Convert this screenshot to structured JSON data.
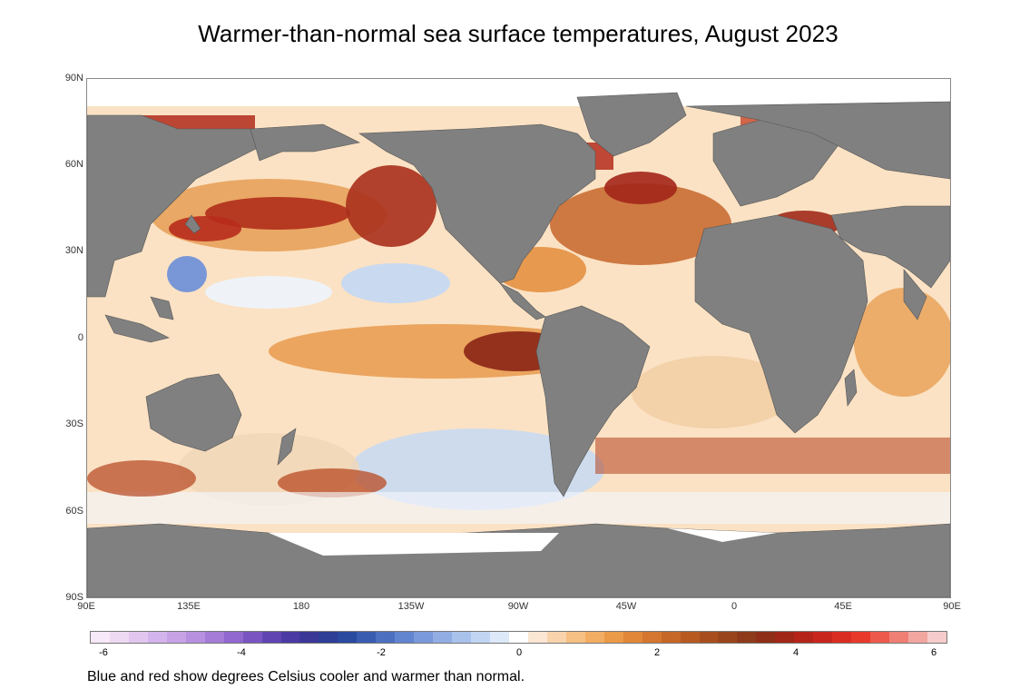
{
  "title": "Warmer-than-normal sea surface temperatures, August 2023",
  "caption": "Blue and red show degrees Celsius cooler and warmer than normal.",
  "map": {
    "projection": "equirectangular",
    "lon_range_labels": [
      "90E",
      "90E"
    ],
    "lat_labels": [
      "90N",
      "60N",
      "30N",
      "0",
      "30S",
      "60S",
      "90S"
    ],
    "lon_labels": [
      "90E",
      "135E",
      "180",
      "135W",
      "90W",
      "45W",
      "0",
      "45E",
      "90E"
    ],
    "colors": {
      "land": "#808080",
      "ice": "#ffffff",
      "warm": "#c23b1f",
      "cool": "#5b7fd6",
      "neutral": "#ffffff"
    }
  },
  "colorbar": {
    "ticks": [
      "-6",
      "-4",
      "-2",
      "0",
      "2",
      "4",
      "6"
    ],
    "range": [
      -6,
      6
    ],
    "colors": [
      "#f7e9f7",
      "#eed9f2",
      "#e1c6ef",
      "#d4b4ec",
      "#c7a3e6",
      "#b890e0",
      "#a57cd8",
      "#9068ce",
      "#7a55c1",
      "#6045b2",
      "#4b3aa3",
      "#3b3797",
      "#2e3d95",
      "#2a4aa0",
      "#3a5cb0",
      "#4c6fc0",
      "#6384cf",
      "#7a99da",
      "#91ade3",
      "#a9c2ec",
      "#c2d6f3",
      "#dde8f8",
      "#ffffff",
      "#fbe6d4",
      "#f8d3ab",
      "#f5c083",
      "#f2ad62",
      "#eb9a47",
      "#e08738",
      "#d4762f",
      "#c66728",
      "#b75a22",
      "#a84e1e",
      "#9a441b",
      "#8c3a19",
      "#8e2e17",
      "#a02717",
      "#b42419",
      "#c8261d",
      "#da2d22",
      "#e73a2b",
      "#ed5a4c",
      "#ef7f74",
      "#f2a6a0",
      "#f5cccb"
    ]
  }
}
